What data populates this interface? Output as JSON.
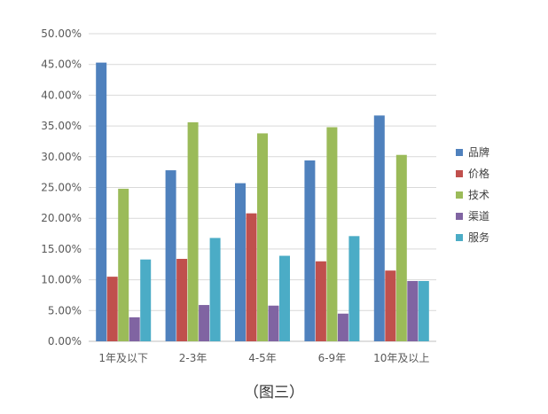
{
  "caption": "（图三）",
  "chart_data": {
    "type": "bar",
    "categories": [
      "1年及以下",
      "2-3年",
      "4-5年",
      "6-9年",
      "10年及以上"
    ],
    "series": [
      {
        "name": "品牌",
        "color": "#4F81BD",
        "values": [
          0.453,
          0.278,
          0.257,
          0.294,
          0.367
        ]
      },
      {
        "name": "价格",
        "color": "#C0504D",
        "values": [
          0.105,
          0.134,
          0.208,
          0.13,
          0.115
        ]
      },
      {
        "name": "技术",
        "color": "#9BBB59",
        "values": [
          0.248,
          0.356,
          0.338,
          0.348,
          0.303
        ]
      },
      {
        "name": "渠道",
        "color": "#8064A2",
        "values": [
          0.039,
          0.059,
          0.058,
          0.045,
          0.098
        ]
      },
      {
        "name": "服务",
        "color": "#4BACC6",
        "values": [
          0.133,
          0.168,
          0.139,
          0.171,
          0.098
        ]
      }
    ],
    "ylim": [
      0,
      0.5
    ],
    "yticks": [
      "0.00%",
      "5.00%",
      "10.00%",
      "15.00%",
      "20.00%",
      "25.00%",
      "30.00%",
      "35.00%",
      "40.00%",
      "45.00%",
      "50.00%"
    ],
    "grid": true,
    "legend_position": "right"
  }
}
